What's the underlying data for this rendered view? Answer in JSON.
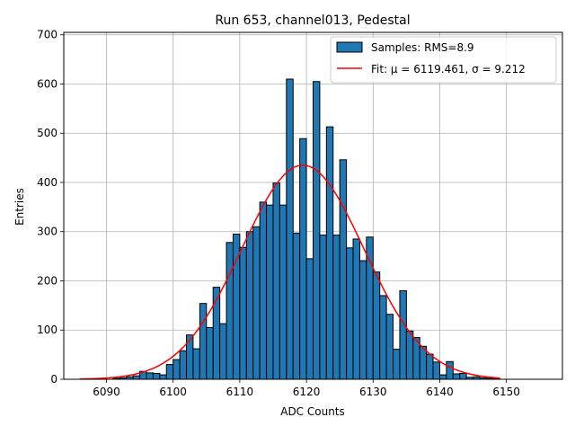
{
  "chart_data": {
    "type": "bar",
    "title": "Run 653, channel013, Pedestal",
    "xlabel": "ADC Counts",
    "ylabel": "Entries",
    "xlim": [
      6083.6,
      6158.4
    ],
    "ylim": [
      0,
      705
    ],
    "xticks": [
      6090,
      6100,
      6110,
      6120,
      6130,
      6140,
      6150
    ],
    "yticks": [
      0,
      100,
      200,
      300,
      400,
      500,
      600,
      700
    ],
    "grid": true,
    "legend_position": "top-right",
    "bin_width": 1,
    "series": [
      {
        "name": "Samples: RMS=8.9",
        "kind": "histogram",
        "color": "#1f77b4",
        "edge_color": "#000000",
        "bin_starts": [
          6091,
          6092,
          6093,
          6094,
          6095,
          6096,
          6097,
          6098,
          6099,
          6100,
          6101,
          6102,
          6103,
          6104,
          6105,
          6106,
          6107,
          6108,
          6109,
          6110,
          6111,
          6112,
          6113,
          6114,
          6115,
          6116,
          6117,
          6118,
          6119,
          6120,
          6121,
          6122,
          6123,
          6124,
          6125,
          6126,
          6127,
          6128,
          6129,
          6130,
          6131,
          6132,
          6133,
          6134,
          6135,
          6136,
          6137,
          6138,
          6139,
          6140,
          6141,
          6142,
          6143,
          6144,
          6145,
          6146,
          6147,
          6148
        ],
        "counts": [
          2,
          3,
          5,
          7,
          16,
          13,
          12,
          9,
          30,
          40,
          58,
          90,
          62,
          154,
          105,
          187,
          113,
          278,
          295,
          268,
          300,
          310,
          360,
          354,
          399,
          354,
          610,
          297,
          489,
          245,
          605,
          293,
          513,
          293,
          446,
          267,
          285,
          241,
          289,
          218,
          170,
          132,
          61,
          180,
          98,
          85,
          67,
          51,
          35,
          9,
          36,
          11,
          12,
          4,
          5,
          3,
          2,
          2
        ]
      },
      {
        "name": "Fit: μ = 6119.461, σ = 9.212",
        "kind": "gaussian_fit",
        "color": "#ff0000",
        "mu": 6119.461,
        "sigma": 9.212,
        "amplitude": 435,
        "x_range": [
          6086,
          6149
        ]
      }
    ]
  }
}
